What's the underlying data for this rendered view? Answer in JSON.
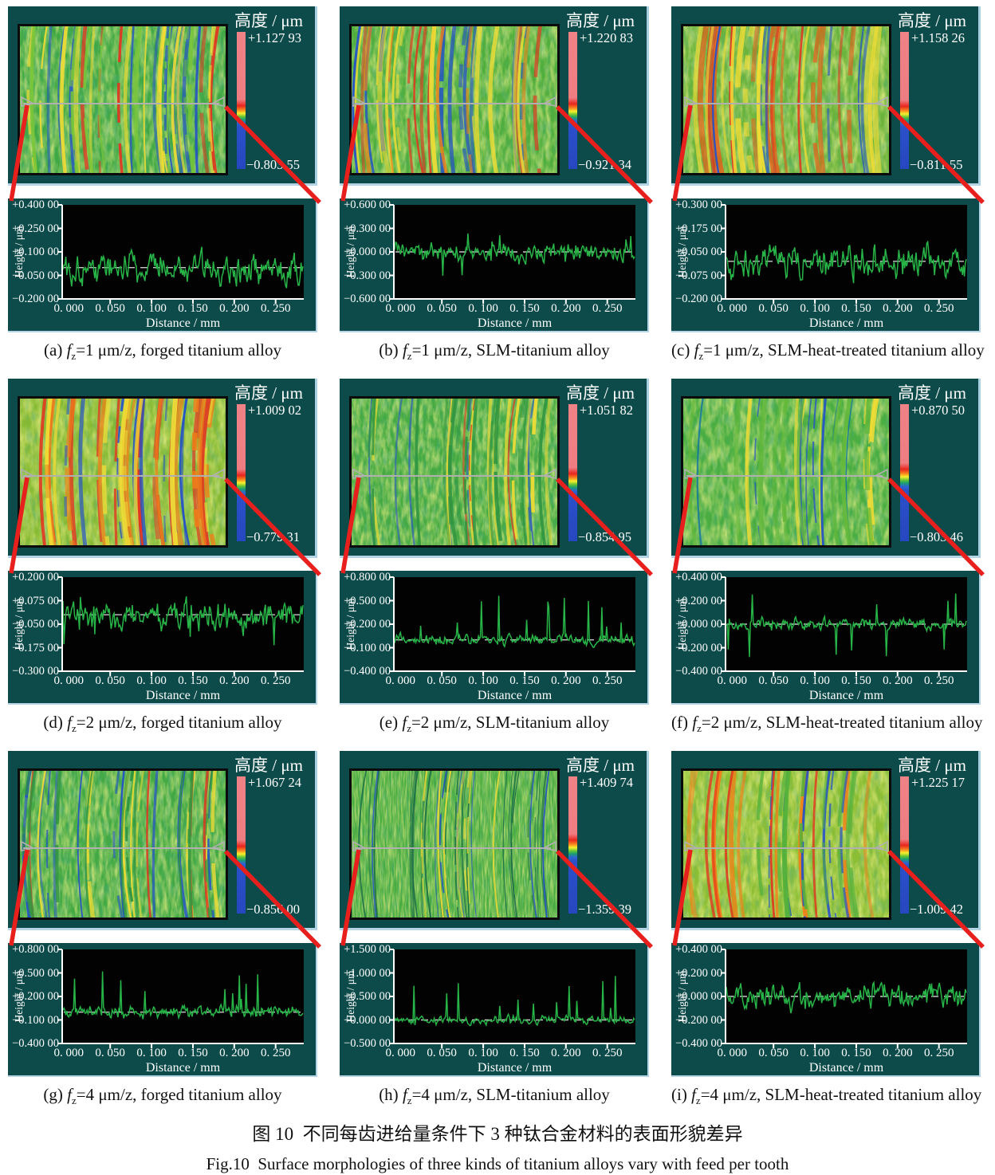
{
  "colorbar_title": "高度 / μm",
  "axis": {
    "ylabel": "Height / μm",
    "xlabel": "Distance / mm",
    "x_ticks": [
      "0. 000",
      "0. 050",
      "0. 100",
      "0. 150",
      "0. 200",
      "0. 250"
    ]
  },
  "figure": {
    "caption_cn": "图 10 不同每齿进给量条件下 3 种钛合金材料的表面形貌差异",
    "caption_en": "Fig.10 Surface morphologies of three kinds of titanium alloys vary with feed per tooth"
  },
  "panels": [
    {
      "id": "a",
      "caption": {
        "index": "(a)",
        "var_letter": "f",
        "var_sub": "z",
        "rest": "=1 μm/z, forged titanium alloy"
      },
      "colorbar": {
        "max": "+1.127 93",
        "min": "−0.803 55"
      },
      "profile": {
        "y_ticks": [
          "+0.400 00",
          "+0.250 00",
          "+0.100 00",
          "−0.050 00",
          "−0.200 00"
        ],
        "ymax": 0.4,
        "ymin": -0.2,
        "amp": 0.55,
        "spike": 0,
        "spike_sign": 0,
        "seed": 101
      },
      "texture": {
        "base": "#3fa845",
        "bf": "0.16 0.05",
        "streaks": [
          [
            "#2450c8",
            12,
            1.5,
            4.5
          ],
          [
            "#e33420",
            5,
            2,
            5
          ],
          [
            "#f0dc35",
            14,
            2,
            6
          ],
          [
            "#7ac638",
            10,
            2,
            6
          ]
        ]
      }
    },
    {
      "id": "b",
      "caption": {
        "index": "(b)",
        "var_letter": "f",
        "var_sub": "z",
        "rest": "=1 μm/z, SLM-titanium alloy"
      },
      "colorbar": {
        "max": "+1.220 83",
        "min": "−0.921 34"
      },
      "profile": {
        "y_ticks": [
          "+0.600 00",
          "+0.300 00",
          "+0.000 00",
          "−0.300 00",
          "−0.600 00"
        ],
        "ymax": 0.6,
        "ymin": -0.6,
        "amp": 0.3,
        "spike": 0.3,
        "spike_sign": 0,
        "seed": 102
      },
      "texture": {
        "base": "#4fae3e",
        "bf": "0.16 0.05",
        "streaks": [
          [
            "#2450c8",
            10,
            2.5,
            6
          ],
          [
            "#e33420",
            7,
            2,
            5
          ],
          [
            "#f0dc35",
            12,
            2,
            6
          ],
          [
            "#f08018",
            5,
            2,
            5
          ]
        ]
      }
    },
    {
      "id": "c",
      "caption": {
        "index": "(c)",
        "var_letter": "f",
        "var_sub": "z",
        "rest": "=1 μm/z, SLM-heat-treated titanium alloy"
      },
      "colorbar": {
        "max": "+1.158 26",
        "min": "−0.811 55"
      },
      "profile": {
        "y_ticks": [
          "+0.300 00",
          "+0.175 00",
          "+0.050 00",
          "−0.075 00",
          "−0.200 00"
        ],
        "ymax": 0.3,
        "ymin": -0.2,
        "amp": 0.55,
        "spike": 0,
        "spike_sign": 0,
        "seed": 103
      },
      "texture": {
        "base": "#6ab33c",
        "bf": "0.15 0.05",
        "streaks": [
          [
            "#e85a18",
            10,
            3,
            7
          ],
          [
            "#e33420",
            6,
            2,
            5
          ],
          [
            "#2450c8",
            6,
            1.5,
            4
          ],
          [
            "#f0dc35",
            12,
            3,
            7
          ]
        ]
      }
    },
    {
      "id": "d",
      "caption": {
        "index": "(d)",
        "var_letter": "f",
        "var_sub": "z",
        "rest": "=2 μm/z, forged titanium alloy"
      },
      "colorbar": {
        "max": "+1.009 02",
        "min": "−0.779 31"
      },
      "profile": {
        "y_ticks": [
          "+0.200 00",
          "+0.075 00",
          "−0.050 00",
          "−0.175 00",
          "−0.300 00"
        ],
        "ymax": 0.2,
        "ymin": -0.3,
        "amp": 0.45,
        "spike": 0.35,
        "spike_sign": -1,
        "seed": 104
      },
      "texture": {
        "base": "#86ba34",
        "bf": "0.14 0.05",
        "streaks": [
          [
            "#e33420",
            14,
            3,
            7
          ],
          [
            "#f08018",
            10,
            3,
            7
          ],
          [
            "#2450c8",
            9,
            2,
            5
          ],
          [
            "#f0dc35",
            10,
            3,
            6
          ]
        ]
      }
    },
    {
      "id": "e",
      "caption": {
        "index": "(e)",
        "var_letter": "f",
        "var_sub": "z",
        "rest": "=2 μm/z, SLM-titanium alloy"
      },
      "colorbar": {
        "max": "+1.051 82",
        "min": "−0.854 95"
      },
      "profile": {
        "y_ticks": [
          "+0.800 00",
          "+0.500 00",
          "+0.200 00",
          "−0.100 00",
          "−0.400 00"
        ],
        "ymax": 0.8,
        "ymin": -0.4,
        "amp": 0.18,
        "spike": 0.5,
        "spike_sign": 1,
        "seed": 105
      },
      "texture": {
        "base": "#45aa43",
        "bf": "0.2 0.06",
        "streaks": [
          [
            "#2450c8",
            7,
            1,
            3
          ],
          [
            "#f0dc35",
            10,
            2,
            5
          ],
          [
            "#e33420",
            3,
            1.5,
            3
          ],
          [
            "#2f9440",
            14,
            2,
            5
          ]
        ]
      }
    },
    {
      "id": "f",
      "caption": {
        "index": "(f)",
        "var_letter": "f",
        "var_sub": "z",
        "rest": "=2 μm/z, SLM-heat-treated titanium alloy"
      },
      "colorbar": {
        "max": "+0.870 50",
        "min": "−0.803 46"
      },
      "profile": {
        "y_ticks": [
          "+0.400 00",
          "+0.200 00",
          "+0.000 00",
          "−0.200 00",
          "−0.400 00"
        ],
        "ymax": 0.4,
        "ymin": -0.4,
        "amp": 0.2,
        "spike": 0.35,
        "spike_sign": 0,
        "seed": 106
      },
      "texture": {
        "base": "#49ad42",
        "bf": "0.14 0.05",
        "streaks": [
          [
            "#f0dc35",
            9,
            2,
            5
          ],
          [
            "#2450c8",
            5,
            1.5,
            3.5
          ],
          [
            "#15789c",
            3,
            1.5,
            3
          ],
          [
            "#63b83a",
            10,
            3,
            6
          ]
        ]
      }
    },
    {
      "id": "g",
      "caption": {
        "index": "(g)",
        "var_letter": "f",
        "var_sub": "z",
        "rest": "=4 μm/z, forged titanium alloy"
      },
      "colorbar": {
        "max": "+1.067 24",
        "min": "−0.856 00"
      },
      "profile": {
        "y_ticks": [
          "+0.800 00",
          "+0.500 00",
          "+0.200 00",
          "−0.100 00",
          "−0.400 00"
        ],
        "ymax": 0.8,
        "ymin": -0.4,
        "amp": 0.2,
        "spike": 0.45,
        "spike_sign": 1,
        "seed": 107
      },
      "texture": {
        "base": "#42a944",
        "bf": "0.2 0.05",
        "streaks": [
          [
            "#2450c8",
            11,
            1.5,
            4
          ],
          [
            "#f0dc35",
            10,
            2,
            5
          ],
          [
            "#e33420",
            4,
            1.5,
            3.5
          ],
          [
            "#2f9440",
            12,
            2,
            4
          ]
        ]
      }
    },
    {
      "id": "h",
      "caption": {
        "index": "(h)",
        "var_letter": "f",
        "var_sub": "z",
        "rest": "=4 μm/z, SLM-titanium alloy"
      },
      "colorbar": {
        "max": "+1.409 74",
        "min": "−1.359 39"
      },
      "profile": {
        "y_ticks": [
          "+1.500 00",
          "+1.000 00",
          "+0.500 00",
          "+0.000 00",
          "−0.500 00"
        ],
        "ymax": 1.5,
        "ymin": -0.5,
        "amp": 0.15,
        "spike": 0.5,
        "spike_sign": 1,
        "seed": 108
      },
      "texture": {
        "base": "#46ab40",
        "bf": "0.5 0.045",
        "streaks": [
          [
            "#1c6e46",
            26,
            1,
            2.2
          ],
          [
            "#2450c8",
            8,
            1,
            2.2
          ],
          [
            "#f0dc35",
            8,
            1.5,
            3
          ]
        ]
      }
    },
    {
      "id": "i",
      "caption": {
        "index": "(i)",
        "var_letter": "f",
        "var_sub": "z",
        "rest": "=4 μm/z, SLM-heat-treated titanium alloy"
      },
      "colorbar": {
        "max": "+1.225 17",
        "min": "−1.009 42"
      },
      "profile": {
        "y_ticks": [
          "+0.400 00",
          "+0.200 00",
          "+0.000 00",
          "−0.200 00",
          "−0.400 00"
        ],
        "ymax": 0.4,
        "ymin": -0.4,
        "amp": 0.4,
        "spike": 0,
        "spike_sign": 0,
        "seed": 109
      },
      "texture": {
        "base": "#8cbe34",
        "bf": "0.15 0.05",
        "streaks": [
          [
            "#f08018",
            9,
            3,
            6
          ],
          [
            "#e33420",
            5,
            2,
            4
          ],
          [
            "#2450c8",
            6,
            1.5,
            3.5
          ],
          [
            "#55b13c",
            10,
            3,
            6
          ]
        ]
      }
    }
  ],
  "chart_data": [
    {
      "type": "line",
      "panel": "a",
      "title": "fz=1 μm/z, forged titanium alloy",
      "xlabel": "Distance / mm",
      "ylabel": "Height / μm",
      "x_range_mm": [
        0,
        0.285
      ],
      "x_tick_values": [
        0,
        0.05,
        0.1,
        0.15,
        0.2,
        0.25
      ],
      "y_tick_values": [
        0.4,
        0.25,
        0.1,
        -0.05,
        -0.2
      ],
      "zero_dashed_line": 0,
      "height_map_range_um": [
        -0.80355,
        1.12793
      ],
      "series_note": "stochastic surface roughness profile about 0 μm"
    },
    {
      "type": "line",
      "panel": "b",
      "title": "fz=1 μm/z, SLM-titanium alloy",
      "xlabel": "Distance / mm",
      "ylabel": "Height / μm",
      "x_range_mm": [
        0,
        0.285
      ],
      "x_tick_values": [
        0,
        0.05,
        0.1,
        0.15,
        0.2,
        0.25
      ],
      "y_tick_values": [
        0.6,
        0.3,
        0,
        -0.3,
        -0.6
      ],
      "zero_dashed_line": 0,
      "height_map_range_um": [
        -0.92134,
        1.22083
      ],
      "series_note": "stochastic surface roughness profile about 0 μm"
    },
    {
      "type": "line",
      "panel": "c",
      "title": "fz=1 μm/z, SLM-heat-treated titanium alloy",
      "xlabel": "Distance / mm",
      "ylabel": "Height / μm",
      "x_range_mm": [
        0,
        0.285
      ],
      "x_tick_values": [
        0,
        0.05,
        0.1,
        0.15,
        0.2,
        0.25
      ],
      "y_tick_values": [
        0.3,
        0.175,
        0.05,
        -0.075,
        -0.2
      ],
      "zero_dashed_line": 0,
      "height_map_range_um": [
        -0.81155,
        1.15826
      ],
      "series_note": "stochastic surface roughness profile about 0 μm"
    },
    {
      "type": "line",
      "panel": "d",
      "title": "fz=2 μm/z, forged titanium alloy",
      "xlabel": "Distance / mm",
      "ylabel": "Height / μm",
      "x_range_mm": [
        0,
        0.285
      ],
      "x_tick_values": [
        0,
        0.05,
        0.1,
        0.15,
        0.2,
        0.25
      ],
      "y_tick_values": [
        0.2,
        0.075,
        -0.05,
        -0.175,
        -0.3
      ],
      "zero_dashed_line": 0,
      "height_map_range_um": [
        -0.77931,
        1.00902
      ],
      "series_note": "stochastic surface roughness profile about 0 μm"
    },
    {
      "type": "line",
      "panel": "e",
      "title": "fz=2 μm/z, SLM-titanium alloy",
      "xlabel": "Distance / mm",
      "ylabel": "Height / μm",
      "x_range_mm": [
        0,
        0.285
      ],
      "x_tick_values": [
        0,
        0.05,
        0.1,
        0.15,
        0.2,
        0.25
      ],
      "y_tick_values": [
        0.8,
        0.5,
        0.2,
        -0.1,
        -0.4
      ],
      "zero_dashed_line": 0,
      "height_map_range_um": [
        -0.85495,
        1.05182
      ],
      "series_note": "stochastic roughness profile with upward spikes"
    },
    {
      "type": "line",
      "panel": "f",
      "title": "fz=2 μm/z, SLM-heat-treated titanium alloy",
      "xlabel": "Distance / mm",
      "ylabel": "Height / μm",
      "x_range_mm": [
        0,
        0.285
      ],
      "x_tick_values": [
        0,
        0.05,
        0.1,
        0.15,
        0.2,
        0.25
      ],
      "y_tick_values": [
        0.4,
        0.2,
        0,
        -0.2,
        -0.4
      ],
      "zero_dashed_line": 0,
      "height_map_range_um": [
        -0.80346,
        0.8705
      ],
      "series_note": "stochastic surface roughness profile about 0 μm"
    },
    {
      "type": "line",
      "panel": "g",
      "title": "fz=4 μm/z, forged titanium alloy",
      "xlabel": "Distance / mm",
      "ylabel": "Height / μm",
      "x_range_mm": [
        0,
        0.285
      ],
      "x_tick_values": [
        0,
        0.05,
        0.1,
        0.15,
        0.2,
        0.25
      ],
      "y_tick_values": [
        0.8,
        0.5,
        0.2,
        -0.1,
        -0.4
      ],
      "zero_dashed_line": 0,
      "height_map_range_um": [
        -0.856,
        1.06724
      ],
      "series_note": "stochastic roughness profile with upward spikes"
    },
    {
      "type": "line",
      "panel": "h",
      "title": "fz=4 μm/z, SLM-titanium alloy",
      "xlabel": "Distance / mm",
      "ylabel": "Height / μm",
      "x_range_mm": [
        0,
        0.285
      ],
      "x_tick_values": [
        0,
        0.05,
        0.1,
        0.15,
        0.2,
        0.25
      ],
      "y_tick_values": [
        1.5,
        1,
        0.5,
        0,
        -0.5
      ],
      "zero_dashed_line": 0,
      "height_map_range_um": [
        -1.35939,
        1.40974
      ],
      "series_note": "stochastic roughness profile with upward spikes"
    },
    {
      "type": "line",
      "panel": "i",
      "title": "fz=4 μm/z, SLM-heat-treated titanium alloy",
      "xlabel": "Distance / mm",
      "ylabel": "Height / μm",
      "x_range_mm": [
        0,
        0.285
      ],
      "x_tick_values": [
        0,
        0.05,
        0.1,
        0.15,
        0.2,
        0.25
      ],
      "y_tick_values": [
        0.4,
        0.2,
        0,
        -0.2,
        -0.4
      ],
      "zero_dashed_line": 0,
      "height_map_range_um": [
        -1.00942,
        1.22517
      ],
      "series_note": "stochastic surface roughness profile about 0 μm"
    }
  ]
}
